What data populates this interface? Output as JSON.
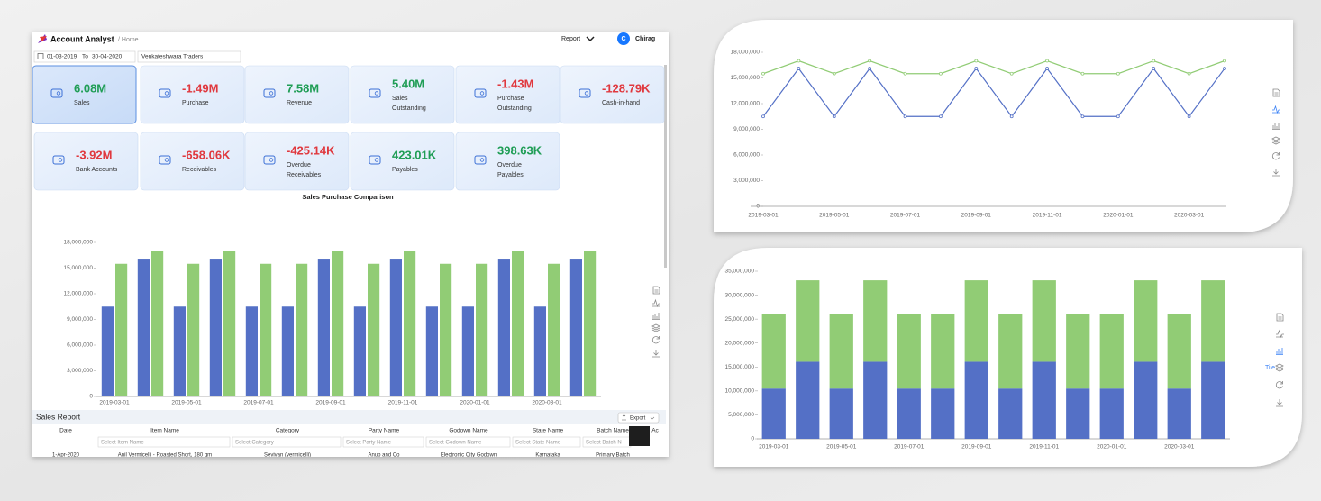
{
  "app": {
    "header": {
      "title": "Account Analyst",
      "breadcrumb": "/ Home",
      "menu": "Report",
      "avatar": "C",
      "user": "Chirag"
    },
    "filters": {
      "from": "01-03-2019",
      "to_label": "To",
      "to": "30-04-2020",
      "company": "Venkateshwara Traders"
    },
    "kpis": [
      {
        "value": "6.08M",
        "label": [
          "Sales"
        ]
      },
      {
        "value": "-1.49M",
        "label": [
          "Purchase"
        ]
      },
      {
        "value": "7.58M",
        "label": [
          "Revenue"
        ]
      },
      {
        "value": "5.40M",
        "label": [
          "Sales",
          "Outstanding"
        ]
      },
      {
        "value": "-1.43M",
        "label": [
          "Purchase",
          "Outstanding"
        ]
      },
      {
        "value": "-128.79K",
        "label": [
          "Cash-in-hand"
        ]
      },
      {
        "value": "-3.92M",
        "label": [
          "Bank Accounts"
        ]
      },
      {
        "value": "-658.06K",
        "label": [
          "Receivables"
        ]
      },
      {
        "value": "-425.14K",
        "label": [
          "Overdue",
          "Receivables"
        ]
      },
      {
        "value": "423.01K",
        "label": [
          "Payables"
        ]
      },
      {
        "value": "398.63K",
        "label": [
          "Overdue",
          "Payables"
        ]
      }
    ],
    "report": {
      "title": "Sales Report",
      "export": "Export",
      "columns": [
        "Date",
        "Item Name",
        "Category",
        "Party Name",
        "Godown Name",
        "State Name",
        "Batch Name",
        "Ac"
      ],
      "placeholders": [
        "Select Item Name",
        "Select Category",
        "Select Party Name",
        "Select Godown Name",
        "Select State Name",
        "Select Batch N"
      ],
      "rows": [
        [
          "1-Apr-2020",
          "Anil Vermicelli - Roasted Short, 180 gm",
          "Sevivan (vermicelli)",
          "Anup and Co",
          "Electronic City Godown",
          "Karnataka",
          "Primary Batch"
        ]
      ]
    },
    "tooltip": "Tile"
  },
  "chart_data": [
    {
      "type": "bar",
      "stacked": false,
      "title": "Sales Purchase Comparison",
      "categories": [
        "2019-03-01",
        null,
        "2019-05-01",
        null,
        "2019-07-01",
        null,
        "2019-09-01",
        null,
        "2019-11-01",
        null,
        "2020-01-01",
        null,
        "2020-03-01",
        null
      ],
      "series": [
        {
          "color": "#5470c6",
          "values": [
            10500000,
            16100000,
            10500000,
            16100000,
            10500000,
            10500000,
            16100000,
            10500000,
            16100000,
            10500000,
            10500000,
            16100000,
            10500000,
            16100000
          ]
        },
        {
          "color": "#91cc75",
          "values": [
            15500000,
            17000000,
            15500000,
            17000000,
            15500000,
            15500000,
            17000000,
            15500000,
            17000000,
            15500000,
            15500000,
            17000000,
            15500000,
            17000000
          ]
        }
      ],
      "ylim": [
        0,
        18000000
      ],
      "yticks": [
        0,
        {
          "value": 3000000,
          "label": "3,000,000"
        },
        {
          "value": 6000000,
          "label": "6,000,000"
        },
        {
          "value": 9000000,
          "label": "9,000,000"
        },
        {
          "value": 12000000,
          "label": "12,000,000"
        },
        {
          "value": 15000000,
          "label": "15,000,000"
        },
        {
          "value": 18000000,
          "label": "18,000,000"
        }
      ],
      "grid": false
    },
    {
      "type": "line",
      "categories": [
        "2019-03-01",
        null,
        "2019-05-01",
        null,
        "2019-07-01",
        null,
        "2019-09-01",
        null,
        "2019-11-01",
        null,
        "2020-01-01",
        null,
        "2020-03-01",
        null
      ],
      "series": [
        {
          "color": "#5470c6",
          "values": [
            10500000,
            16100000,
            10500000,
            16100000,
            10500000,
            10500000,
            16100000,
            10500000,
            16100000,
            10500000,
            10500000,
            16100000,
            10500000,
            16100000
          ]
        },
        {
          "color": "#91cc75",
          "values": [
            15500000,
            17000000,
            15500000,
            17000000,
            15500000,
            15500000,
            17000000,
            15500000,
            17000000,
            15500000,
            15500000,
            17000000,
            15500000,
            17000000
          ]
        }
      ],
      "ylim": [
        0,
        18000000
      ],
      "yticks": [
        0,
        {
          "value": 3000000,
          "label": "3,000,000"
        },
        {
          "value": 6000000,
          "label": "6,000,000"
        },
        {
          "value": 9000000,
          "label": "9,000,000"
        },
        {
          "value": 12000000,
          "label": "12,000,000"
        },
        {
          "value": 15000000,
          "label": "15,000,000"
        },
        {
          "value": 18000000,
          "label": "18,000,000"
        }
      ],
      "grid": false
    },
    {
      "type": "bar",
      "stacked": true,
      "categories": [
        "2019-03-01",
        null,
        "2019-05-01",
        null,
        "2019-07-01",
        null,
        "2019-09-01",
        null,
        "2019-11-01",
        null,
        "2020-01-01",
        null,
        "2020-03-01",
        null
      ],
      "series": [
        {
          "color": "#5470c6",
          "values": [
            10500000,
            16100000,
            10500000,
            16100000,
            10500000,
            10500000,
            16100000,
            10500000,
            16100000,
            10500000,
            10500000,
            16100000,
            10500000,
            16100000
          ]
        },
        {
          "color": "#91cc75",
          "values": [
            15500000,
            17000000,
            15500000,
            17000000,
            15500000,
            15500000,
            17000000,
            15500000,
            17000000,
            15500000,
            15500000,
            17000000,
            15500000,
            17000000
          ]
        }
      ],
      "ylim": [
        0,
        35000000
      ],
      "yticks": [
        0,
        {
          "value": 5000000,
          "label": "5,000,000"
        },
        {
          "value": 10000000,
          "label": "10,000,000"
        },
        {
          "value": 15000000,
          "label": "15,000,000"
        },
        {
          "value": 20000000,
          "label": "20,000,000"
        },
        {
          "value": 25000000,
          "label": "25,000,000"
        },
        {
          "value": 30000000,
          "label": "30,000,000"
        },
        {
          "value": 35000000,
          "label": "35,000,000"
        }
      ],
      "grid": false
    }
  ]
}
